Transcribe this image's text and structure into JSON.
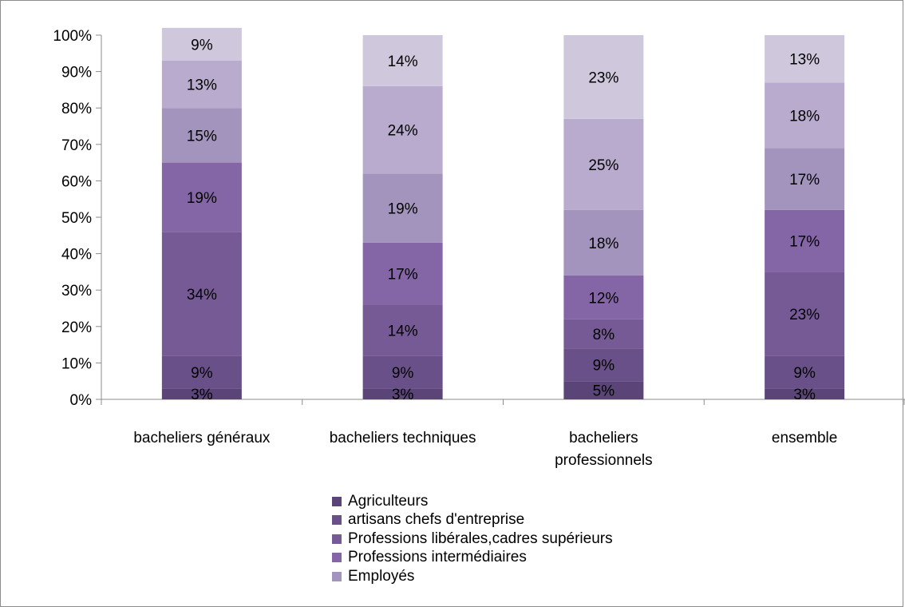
{
  "chart_data": {
    "type": "bar",
    "stacked": true,
    "percent": true,
    "categories": [
      [
        "bacheliers généraux"
      ],
      [
        "bacheliers techniques"
      ],
      [
        "bacheliers",
        "professionnels"
      ],
      [
        "ensemble"
      ]
    ],
    "y_ticks": [
      "0%",
      "10%",
      "20%",
      "30%",
      "40%",
      "50%",
      "60%",
      "70%",
      "80%",
      "90%",
      "100%"
    ],
    "ylim": [
      0,
      100
    ],
    "legend_position": "bottom",
    "series": [
      {
        "name": "Agriculteurs",
        "color": "#5b4478",
        "values": [
          3,
          3,
          5,
          3
        ],
        "labels": [
          "3%",
          "3%",
          "5%",
          "3%"
        ]
      },
      {
        "name": "artisans chefs d'entreprise",
        "color": "#6a5088",
        "values": [
          9,
          9,
          9,
          9
        ],
        "labels": [
          "9%",
          "9%",
          "9%",
          "9%"
        ]
      },
      {
        "name": "Professions libérales,cadres supérieurs",
        "color": "#765a95",
        "values": [
          34,
          14,
          8,
          23
        ],
        "labels": [
          "34%",
          "14%",
          "8%",
          "23%"
        ]
      },
      {
        "name": "Professions intermédiaires",
        "color": "#8466a6",
        "values": [
          19,
          17,
          12,
          17
        ],
        "labels": [
          "19%",
          "17%",
          "12%",
          "17%"
        ]
      },
      {
        "name": "Employés",
        "color": "#a394bd",
        "values": [
          15,
          19,
          18,
          17
        ],
        "labels": [
          "15%",
          "19%",
          "18%",
          "17%"
        ]
      },
      {
        "name": "",
        "color": "#b8abcd",
        "values": [
          13,
          24,
          25,
          18
        ],
        "labels": [
          "13%",
          "24%",
          "25%",
          "18%"
        ]
      },
      {
        "name": "",
        "color": "#cfc8dc",
        "values": [
          9,
          14,
          23,
          13
        ],
        "labels": [
          "9%",
          "14%",
          "23%",
          "13%"
        ]
      }
    ]
  }
}
